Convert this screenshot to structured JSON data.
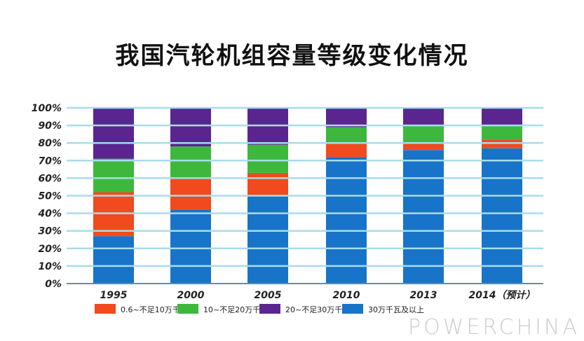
{
  "chart_data": {
    "type": "bar",
    "stacked": true,
    "title": "我国汽轮机组容量等级变化情况",
    "categories": [
      "1995",
      "2000",
      "2005",
      "2010",
      "2013",
      "2014（预计）"
    ],
    "ylim": [
      0,
      100
    ],
    "yticks": [
      "0%",
      "10%",
      "20%",
      "30%",
      "40%",
      "50%",
      "60%",
      "70%",
      "80%",
      "90%",
      "100%"
    ],
    "grid": true,
    "legend": "bottom",
    "series": [
      {
        "name": "30万千瓦及以上",
        "color": "#1874c8",
        "values": [
          27,
          42,
          50,
          72,
          76,
          77
        ]
      },
      {
        "name": "0.6~不足10万千瓦",
        "color": "#f04a1e",
        "values": [
          25,
          18,
          13,
          8,
          4,
          5
        ]
      },
      {
        "name": "10~不足20万千瓦",
        "color": "#3db83d",
        "values": [
          19,
          18,
          16,
          9,
          10,
          8
        ]
      },
      {
        "name": "20~不足30万千瓦",
        "color": "#5b2590",
        "values": [
          29,
          22,
          21,
          11,
          10,
          10
        ]
      }
    ],
    "legend_order": [
      1,
      2,
      3,
      0
    ]
  },
  "watermark": "POWERCHINA"
}
